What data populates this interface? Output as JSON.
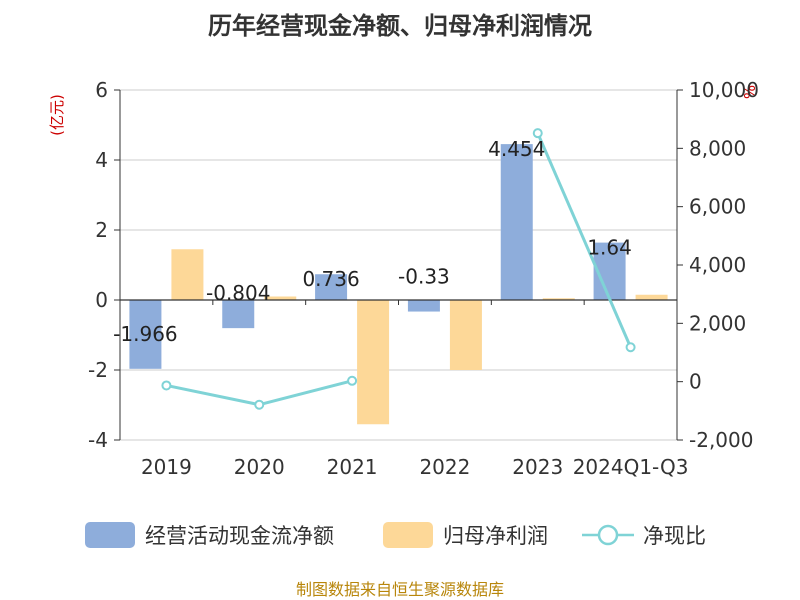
{
  "title": "历年经营现金净额、归母净利润情况",
  "footer": "制图数据来自恒生聚源数据库",
  "colors": {
    "bar_ocf": "#8EADDB",
    "bar_np": "#FDD898",
    "line_ratio": "#7FD3D6",
    "unit_label": "#CC0000",
    "footer": "#B8860B",
    "title": "#333333",
    "axis": "#333333",
    "grid": "#CCCCCC"
  },
  "chart_data": {
    "type": "bar",
    "title": "历年经营现金净额、归母净利润情况",
    "categories": [
      "2019",
      "2020",
      "2021",
      "2022",
      "2023",
      "2024Q1-Q3"
    ],
    "y_left": {
      "unit_label": "(亿元)",
      "ylim": [
        -4,
        6
      ],
      "ticks": [
        "6",
        "4",
        "2",
        "0",
        "-2",
        "-4"
      ]
    },
    "y_right": {
      "unit_label": "%",
      "ylim": [
        -2000,
        10000
      ],
      "ticks": [
        "10,000",
        "8,000",
        "6,000",
        "4,000",
        "2,000",
        "0",
        "-2,000"
      ]
    },
    "grid": true,
    "legend_position": "bottom",
    "series": [
      {
        "name": "经营活动现金流净额",
        "type": "bar",
        "axis": "left",
        "values": [
          -1.966,
          -0.804,
          0.736,
          -0.33,
          4.454,
          1.64
        ],
        "labels": [
          "-1.966",
          "-0.804",
          "0.736",
          "-0.33",
          "4.454",
          "1.64"
        ]
      },
      {
        "name": "归母净利润",
        "type": "bar",
        "axis": "left",
        "values": [
          1.45,
          0.1,
          -3.55,
          -2.0,
          0.05,
          0.15
        ]
      },
      {
        "name": "净现比",
        "type": "line",
        "axis": "right",
        "values": [
          -130,
          -790,
          30,
          null,
          8520,
          1180
        ]
      }
    ]
  }
}
